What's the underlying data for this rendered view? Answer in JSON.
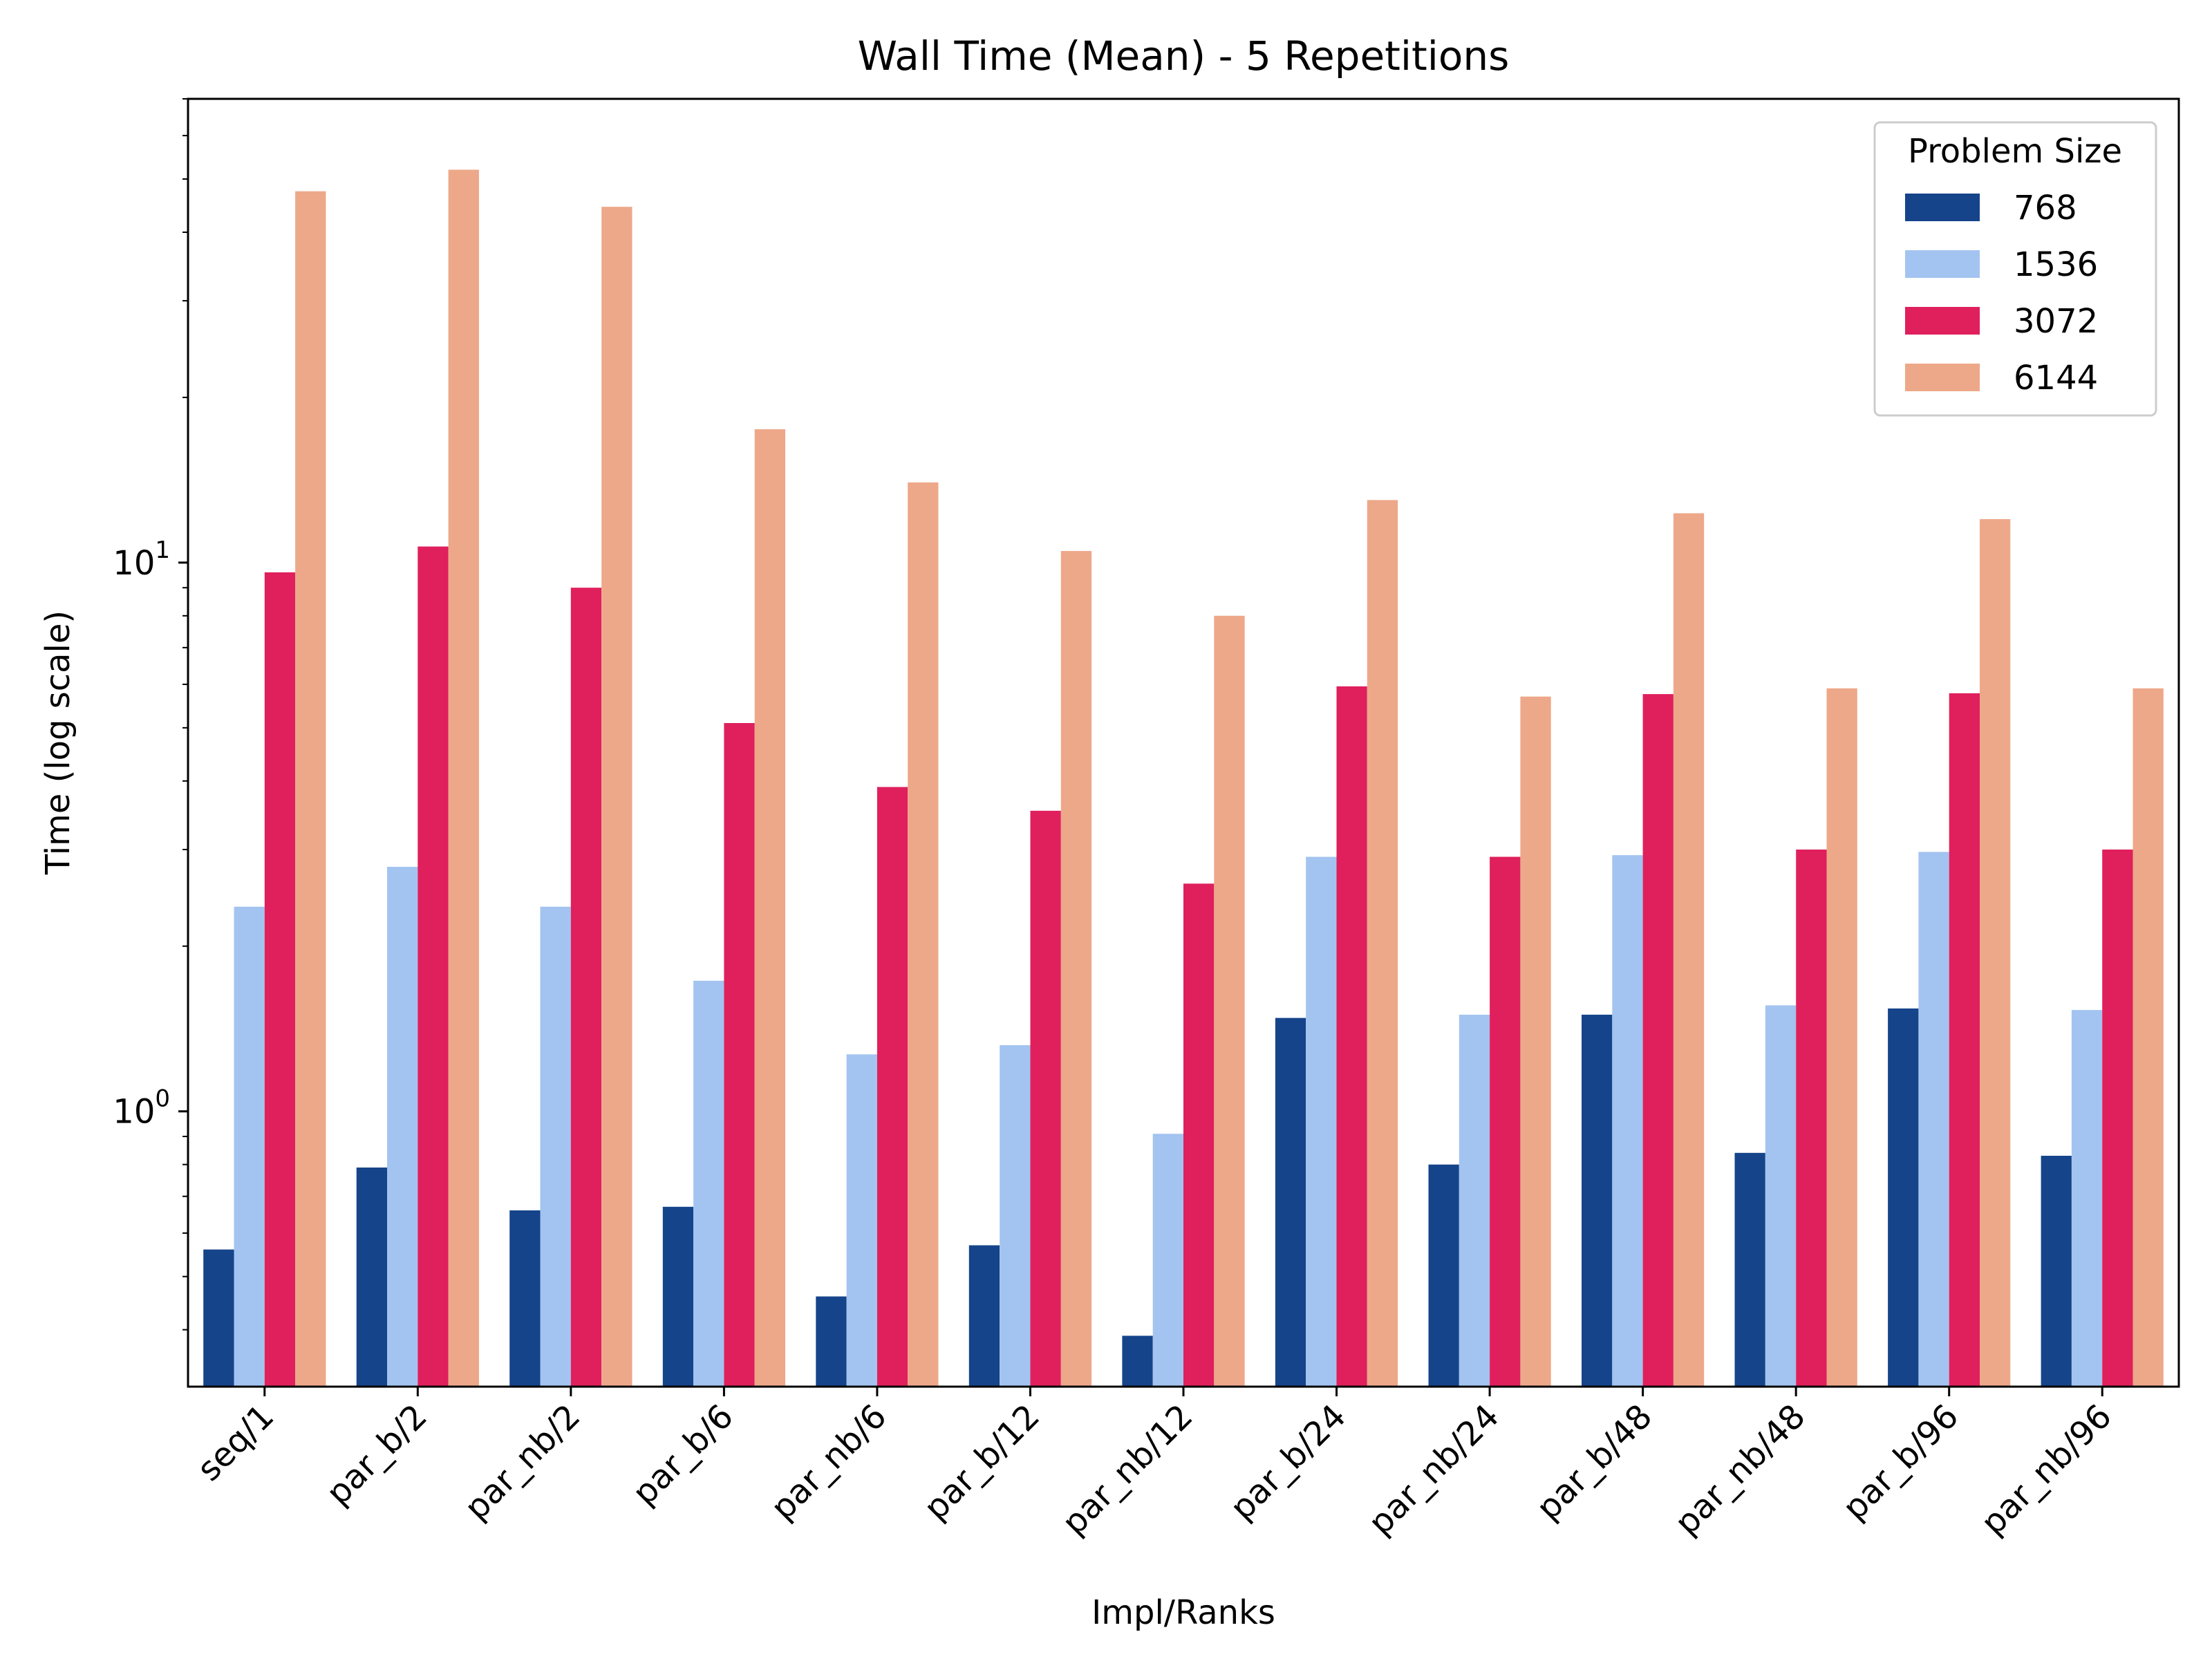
{
  "chart_data": {
    "type": "bar",
    "title": "Wall Time (Mean) - 5 Repetitions",
    "xlabel": "Impl/Ranks",
    "ylabel": "Time (log scale)",
    "yscale": "log",
    "ylim": [
      0.315,
      70
    ],
    "yticks": [
      1,
      10
    ],
    "ytick_labels": [
      {
        "base": "10",
        "exp": "0"
      },
      {
        "base": "10",
        "exp": "1"
      }
    ],
    "categories": [
      "seq/1",
      "par_b/2",
      "par_nb/2",
      "par_b/6",
      "par_nb/6",
      "par_b/12",
      "par_nb/12",
      "par_b/24",
      "par_nb/24",
      "par_b/48",
      "par_nb/48",
      "par_b/96",
      "par_nb/96"
    ],
    "legend": {
      "title": "Problem Size",
      "position": "upper right"
    },
    "series": [
      {
        "name": "768",
        "color": "#15448a",
        "values": [
          0.56,
          0.79,
          0.66,
          0.67,
          0.46,
          0.57,
          0.39,
          1.48,
          0.8,
          1.5,
          0.84,
          1.54,
          0.83
        ]
      },
      {
        "name": "1536",
        "color": "#a3c4f0",
        "values": [
          2.36,
          2.79,
          2.36,
          1.73,
          1.27,
          1.32,
          0.91,
          2.91,
          1.5,
          2.93,
          1.56,
          2.97,
          1.53
        ]
      },
      {
        "name": "3072",
        "color": "#df205c",
        "values": [
          9.6,
          10.7,
          9.0,
          5.1,
          3.9,
          3.53,
          2.6,
          5.95,
          2.91,
          5.76,
          3.0,
          5.78,
          3.0
        ]
      },
      {
        "name": "6144",
        "color": "#eda889",
        "values": [
          47.5,
          52.0,
          44.5,
          17.5,
          14.0,
          10.5,
          8.0,
          13.0,
          5.7,
          12.3,
          5.9,
          12.0,
          5.9
        ]
      }
    ]
  }
}
